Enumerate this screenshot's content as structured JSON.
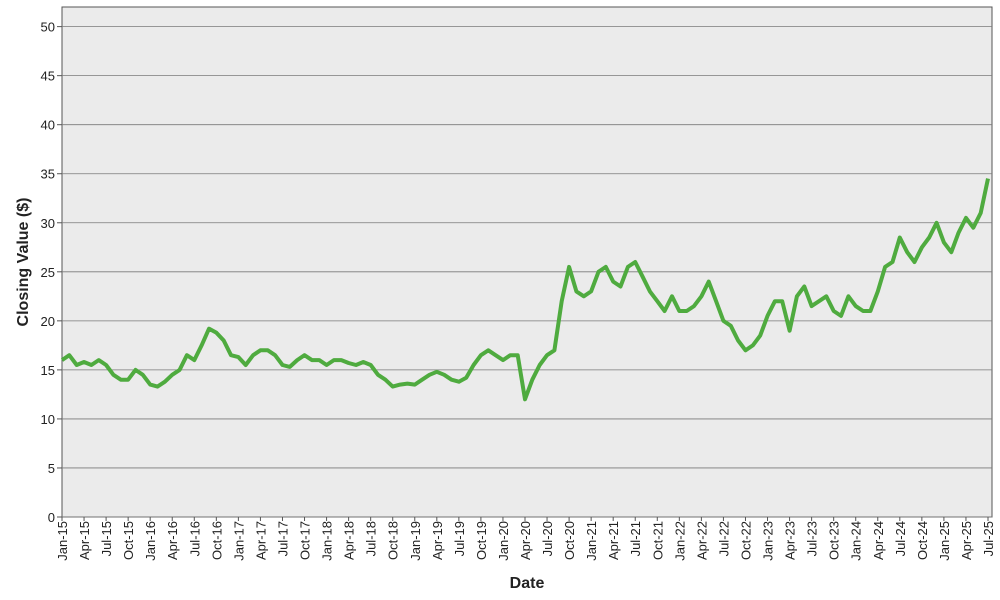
{
  "chart_data": {
    "type": "line",
    "x_label": "Date",
    "y_label": "Closing Value ($)",
    "categories": [
      "Jan-15",
      null,
      null,
      "Apr-15",
      null,
      null,
      "Jul-15",
      null,
      null,
      "Oct-15",
      null,
      null,
      "Jan-16",
      null,
      null,
      "Apr-16",
      null,
      null,
      "Jul-16",
      null,
      null,
      "Oct-16",
      null,
      null,
      "Jan-17",
      null,
      null,
      "Apr-17",
      null,
      null,
      "Jul-17",
      null,
      null,
      "Oct-17",
      null,
      null,
      "Jan-18",
      null,
      null,
      "Apr-18",
      null,
      null,
      "Jul-18",
      null,
      null,
      "Oct-18",
      null,
      null,
      "Jan-19",
      null,
      null,
      "Apr-19",
      null,
      null,
      "Jul-19",
      null,
      null,
      "Oct-19",
      null,
      null,
      "Jan-20",
      null,
      null,
      "Apr-20",
      null,
      null,
      "Jul-20",
      null,
      null,
      "Oct-20",
      null,
      null,
      "Jan-21",
      null,
      null,
      "Apr-21",
      null,
      null,
      "Jul-21",
      null,
      null,
      "Oct-21",
      null,
      null,
      "Jan-22",
      null,
      null,
      "Apr-22",
      null,
      null,
      "Jul-22",
      null,
      null,
      "Oct-22",
      null,
      null,
      "Jan-23",
      null,
      null,
      "Apr-23",
      null,
      null,
      "Jul-23",
      null,
      null,
      "Oct-23",
      null,
      null,
      "Jan-24",
      null,
      null,
      "Apr-24",
      null,
      null,
      "Jul-24",
      null,
      null,
      "Oct-24",
      null,
      null,
      "Jan-25",
      null,
      null,
      "Apr-25",
      null,
      null,
      "Jul-25"
    ],
    "series": [
      {
        "name": "Closing Value",
        "color": "#4fab3f",
        "values": [
          16,
          16.5,
          15.5,
          15.8,
          15.5,
          16,
          15.5,
          14.5,
          14,
          14,
          15,
          14.5,
          13.5,
          13.3,
          13.8,
          14.5,
          15,
          16.5,
          16,
          17.5,
          19.2,
          18.8,
          18,
          16.5,
          16.3,
          15.5,
          16.5,
          17,
          17,
          16.5,
          15.5,
          15.3,
          16,
          16.5,
          16,
          16,
          15.5,
          16,
          16,
          15.7,
          15.5,
          15.8,
          15.5,
          14.5,
          14,
          13.3,
          13.5,
          13.6,
          13.5,
          14,
          14.5,
          14.8,
          14.5,
          14,
          13.8,
          14.2,
          15.5,
          16.5,
          17,
          16.5,
          16,
          16.5,
          16.5,
          12,
          14,
          15.5,
          16.5,
          17,
          22,
          25.5,
          23,
          22.5,
          23,
          25,
          25.5,
          24,
          23.5,
          25.5,
          26,
          24.5,
          23,
          22,
          21,
          22.5,
          21,
          21,
          21.5,
          22.5,
          24,
          22,
          20,
          19.5,
          18,
          17,
          17.5,
          18.5,
          20.5,
          22,
          22,
          19,
          22.5,
          23.5,
          21.5,
          22,
          22.5,
          21,
          20.5,
          22.5,
          21.5,
          21,
          21,
          23,
          25.5,
          26,
          28.5,
          27,
          26,
          27.5,
          28.5,
          30,
          28,
          27,
          29,
          30.5,
          29.5,
          31,
          34.5
        ]
      }
    ],
    "ylim": [
      0,
      52
    ],
    "yticks": [
      0,
      5,
      10,
      15,
      20,
      25,
      30,
      35,
      40,
      45,
      50
    ],
    "grid": true
  }
}
